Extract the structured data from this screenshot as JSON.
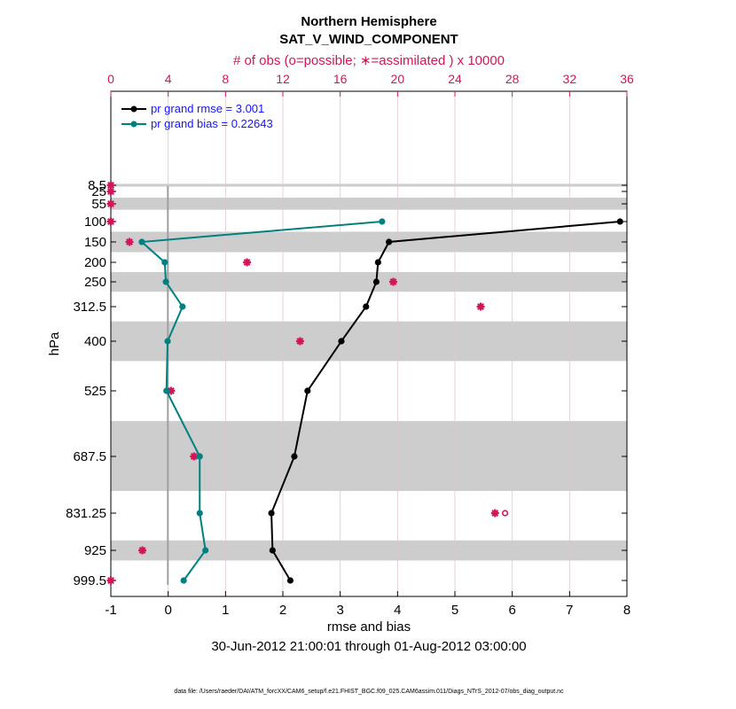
{
  "chart_data": {
    "type": "line",
    "title": "Northern Hemisphere",
    "subtitle": "SAT_V_WIND_COMPONENT",
    "top_axis_label": "# of obs (o=possible; ∗=assimilated ) x 10000",
    "xlabel": "rmse and bias",
    "ylabel": "hPa",
    "date_range": "30-Jun-2012 21:00:01 through 01-Aug-2012 03:00:00",
    "footnote": "data file: /Users/raeder/DAI/ATM_forcXX/CAM6_setup/f.e21.FHIST_BGC.f09_025.CAM6assim.011/Diags_NTrS_2012-07/obs_diag_output.nc",
    "xlim": [
      -1,
      8
    ],
    "x_ticks": [
      "-1",
      "0",
      "1",
      "2",
      "3",
      "4",
      "5",
      "6",
      "7",
      "8"
    ],
    "top_xlim": [
      0,
      36
    ],
    "top_ticks": [
      "0",
      "4",
      "8",
      "12",
      "16",
      "20",
      "24",
      "28",
      "32",
      "36"
    ],
    "levels": [
      8.5,
      25,
      55,
      100,
      150,
      200,
      250,
      312.5,
      400,
      525,
      687.5,
      831.25,
      925,
      999.5
    ],
    "level_labels": [
      "8.5",
      "25",
      "55",
      "100",
      "150",
      "200",
      "250",
      "312.5",
      "400",
      "525",
      "687.5",
      "831.25",
      "925",
      "999.5"
    ],
    "shaded_layers": [
      [
        5,
        12
      ],
      [
        40,
        70
      ],
      [
        125,
        175
      ],
      [
        225,
        275
      ],
      [
        350,
        450
      ],
      [
        600,
        775
      ],
      [
        900,
        950
      ]
    ],
    "series": [
      {
        "name": "pr grand rmse",
        "legend": "pr grand rmse = 3.001",
        "color": "#000000",
        "points": [
          {
            "p": 100,
            "v": 7.88
          },
          {
            "p": 150,
            "v": 3.85
          },
          {
            "p": 200,
            "v": 3.66
          },
          {
            "p": 250,
            "v": 3.63
          },
          {
            "p": 312.5,
            "v": 3.45
          },
          {
            "p": 400,
            "v": 3.02
          },
          {
            "p": 525,
            "v": 2.43
          },
          {
            "p": 687.5,
            "v": 2.2
          },
          {
            "p": 831.25,
            "v": 1.8
          },
          {
            "p": 925,
            "v": 1.82
          },
          {
            "p": 999.5,
            "v": 2.13
          }
        ]
      },
      {
        "name": "pr grand bias",
        "legend": "pr grand bias = 0.22643",
        "color": "#008080",
        "points": [
          {
            "p": 100,
            "v": 3.73
          },
          {
            "p": 150,
            "v": -0.46
          },
          {
            "p": 200,
            "v": -0.06
          },
          {
            "p": 250,
            "v": -0.04
          },
          {
            "p": 312.5,
            "v": 0.25
          },
          {
            "p": 400,
            "v": -0.01
          },
          {
            "p": 525,
            "v": -0.03
          },
          {
            "p": 687.5,
            "v": 0.55
          },
          {
            "p": 831.25,
            "v": 0.55
          },
          {
            "p": 925,
            "v": 0.65
          },
          {
            "p": 999.5,
            "v": 0.27
          }
        ]
      }
    ],
    "obs_assimilated": [
      {
        "p": 8.5,
        "n": 0
      },
      {
        "p": 25,
        "n": 0
      },
      {
        "p": 55,
        "n": 0
      },
      {
        "p": 100,
        "n": 0
      },
      {
        "p": 150,
        "n": 1.3
      },
      {
        "p": 200,
        "n": 9.5
      },
      {
        "p": 250,
        "n": 19.7
      },
      {
        "p": 312.5,
        "n": 25.8
      },
      {
        "p": 400,
        "n": 13.2
      },
      {
        "p": 525,
        "n": 4.2
      },
      {
        "p": 687.5,
        "n": 5.8
      },
      {
        "p": 831.25,
        "n": 26.8
      },
      {
        "p": 925,
        "n": 2.2
      },
      {
        "p": 999.5,
        "n": 0
      }
    ],
    "obs_possible": [
      {
        "p": 8.5,
        "n": 0
      },
      {
        "p": 25,
        "n": 0
      },
      {
        "p": 55,
        "n": 0
      },
      {
        "p": 100,
        "n": 0
      },
      {
        "p": 150,
        "n": 1.3
      },
      {
        "p": 200,
        "n": 9.5
      },
      {
        "p": 250,
        "n": 19.7
      },
      {
        "p": 312.5,
        "n": 25.8
      },
      {
        "p": 400,
        "n": 13.2
      },
      {
        "p": 525,
        "n": 4.2
      },
      {
        "p": 687.5,
        "n": 5.8
      },
      {
        "p": 831.25,
        "n": 27.5
      },
      {
        "p": 925,
        "n": 2.2
      },
      {
        "p": 999.5,
        "n": 0
      }
    ]
  }
}
